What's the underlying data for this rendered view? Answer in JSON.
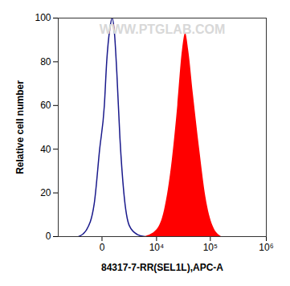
{
  "chart_data": {
    "type": "histogram",
    "x_label": "84317-7-RR(SEL1L),APC-A",
    "y_label": "Relative cell number",
    "annotations": [
      {
        "text": "WWW.PTGLAB.COM"
      }
    ],
    "log": "x",
    "xlim": [
      -6000,
      1000000
    ],
    "xticks": [
      0,
      {
        "value": 10000,
        "label": "10⁴"
      },
      {
        "value": 100000,
        "label": "10⁵"
      },
      {
        "value": 1000000,
        "label": "10⁶"
      }
    ],
    "ylim": [
      0,
      100
    ],
    "yticks": [
      0,
      20,
      40,
      60,
      80,
      100
    ],
    "series": [
      {
        "type": "line",
        "color": "#1a1a8c",
        "x": [
          -1930,
          -1075,
          -451,
          -121,
          121,
          254,
          451,
          618,
          800,
          1002,
          1302,
          1736,
          2472,
          3856,
          5755
        ],
        "values": [
          0,
          3,
          15,
          40,
          60,
          80,
          95,
          100,
          93,
          75,
          45,
          20,
          5,
          1,
          0
        ]
      },
      {
        "type": "area",
        "color": "#ff0000",
        "x": [
          5755,
          10030,
          14270,
          20080,
          25430,
          30980,
          35420,
          40420,
          49220,
          63950,
          82900,
          110900,
          158000
        ],
        "values": [
          0,
          3,
          12,
          35,
          60,
          85,
          93,
          85,
          65,
          40,
          18,
          5,
          0
        ]
      }
    ]
  }
}
